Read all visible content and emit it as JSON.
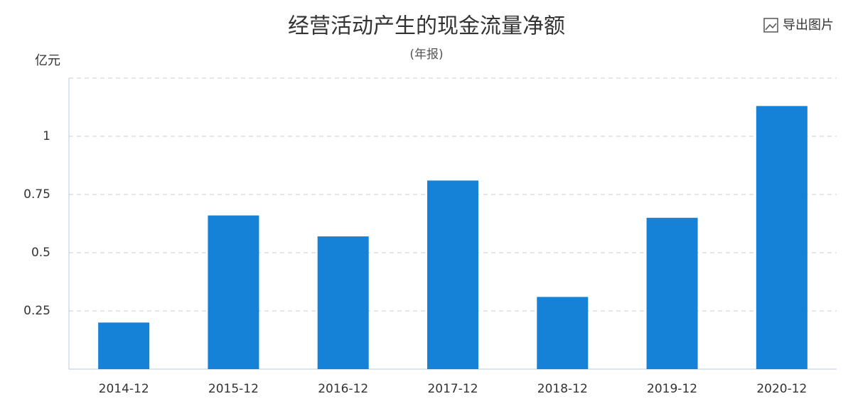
{
  "chart_data": {
    "type": "bar",
    "title": "经营活动产生的现金流量净额",
    "subtitle": "(年报)",
    "y_label": "亿元",
    "categories": [
      "2014-12",
      "2015-12",
      "2016-12",
      "2017-12",
      "2018-12",
      "2019-12",
      "2020-12"
    ],
    "values": [
      0.2,
      0.66,
      0.57,
      0.81,
      0.31,
      0.65,
      1.13
    ],
    "color": "#1582d8",
    "ylim": [
      0,
      1.25
    ],
    "yticks": [
      0.25,
      0.5,
      0.75,
      1
    ],
    "grid": true
  },
  "toolbar": {
    "export": "导出图片"
  }
}
